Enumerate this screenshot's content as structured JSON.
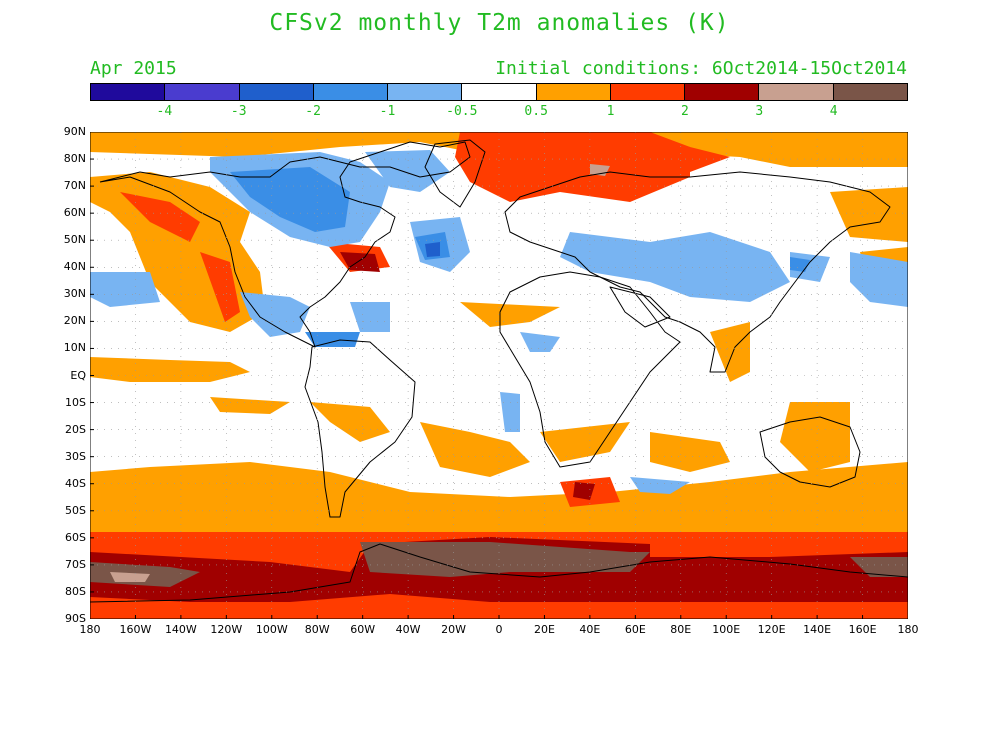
{
  "title": "CFSv2 monthly T2m anomalies (K)",
  "valid_month": "Apr 2015",
  "initial_conditions": "Initial conditions: 6Oct2014-15Oct2014",
  "colors": {
    "title_text": "#22bb22",
    "land_outline": "#000000",
    "background": "#ffffff"
  },
  "colorbar": {
    "segments": [
      "#1f0a9c",
      "#4a3ccf",
      "#1f5fcc",
      "#3a8ee6",
      "#78b4f2",
      "#ffffff",
      "#ffa000",
      "#ff3c00",
      "#a00000",
      "#c8a090",
      "#7a5548"
    ],
    "labels": [
      "-4",
      "-3",
      "-2",
      "-1",
      "-0.5",
      "0.5",
      "1",
      "2",
      "3",
      "4"
    ]
  },
  "map": {
    "lat_labels": [
      "90N",
      "80N",
      "70N",
      "60N",
      "50N",
      "40N",
      "30N",
      "20N",
      "10N",
      "EQ",
      "10S",
      "20S",
      "30S",
      "40S",
      "50S",
      "60S",
      "70S",
      "80S",
      "90S"
    ],
    "lon_labels": [
      "180",
      "160W",
      "140W",
      "120W",
      "100W",
      "80W",
      "60W",
      "40W",
      "20W",
      "0",
      "20E",
      "40E",
      "60E",
      "80E",
      "100E",
      "120E",
      "140E",
      "160E",
      "180"
    ]
  }
}
